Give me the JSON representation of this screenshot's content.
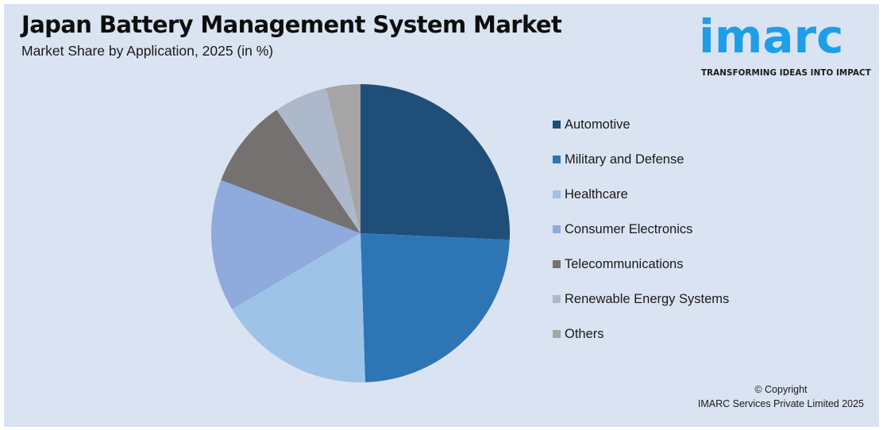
{
  "header": {
    "title": "Japan Battery Management System Market",
    "subtitle": "Market Share by Application, 2025 (in %)"
  },
  "logo": {
    "wordmark": "imarc",
    "tagline": "TRANSFORMING IDEAS INTO IMPACT",
    "color": "#1e9ee8"
  },
  "footer": {
    "copyright_line1": "© Copyright",
    "copyright_line2": "IMARC Services Private Limited 2025"
  },
  "legend": {
    "items": [
      {
        "label": "Automotive",
        "color": "#1f4e79"
      },
      {
        "label": "Military and Defense",
        "color": "#2e75b6"
      },
      {
        "label": "Healthcare",
        "color": "#9dc3e6"
      },
      {
        "label": "Consumer Electronics",
        "color": "#8faadc"
      },
      {
        "label": "Telecommunications",
        "color": "#767171"
      },
      {
        "label": "Renewable Energy Systems",
        "color": "#adb9ca"
      },
      {
        "label": "Others",
        "color": "#a5a5a5"
      }
    ]
  },
  "chart_data": {
    "type": "pie",
    "title": "Japan Battery Management System Market",
    "subtitle": "Market Share by Application, 2025 (in %)",
    "categories": [
      "Automotive",
      "Military and Defense",
      "Healthcare",
      "Consumer Electronics",
      "Telecommunications",
      "Renewable Energy Systems",
      "Others"
    ],
    "values": [
      25.7,
      23.8,
      17.0,
      14.3,
      9.7,
      5.8,
      3.7
    ],
    "colors": [
      "#1f4e79",
      "#2e75b6",
      "#9dc3e6",
      "#8faadc",
      "#767171",
      "#adb9ca",
      "#a5a5a5"
    ],
    "start_angle": "12 o'clock, clockwise",
    "data_labels": false,
    "legend_position": "right"
  }
}
